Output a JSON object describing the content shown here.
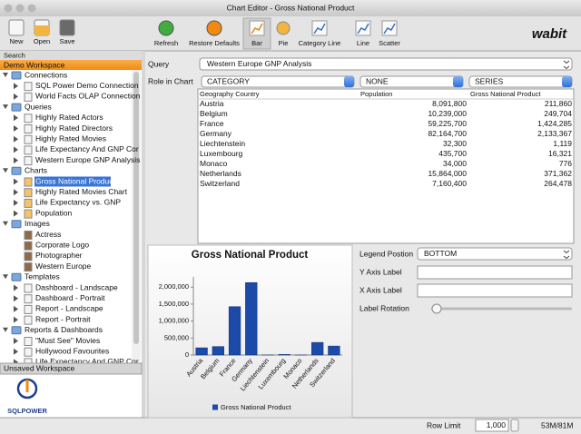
{
  "window": {
    "title": "Chart Editor - Gross National Product"
  },
  "toolbar": {
    "file_buttons": [
      "New",
      "Open",
      "Save"
    ],
    "chart_buttons": [
      "Refresh",
      "Restore Defaults",
      "Bar",
      "Pie",
      "Category Line",
      "Line",
      "Scatter"
    ],
    "logo": "wabit"
  },
  "sidebar": {
    "search": "Search",
    "workspace": "Demo Workspace",
    "tree": [
      {
        "label": "Connections",
        "items": [
          "SQL Power Demo Connection",
          "World Facts OLAP Connection"
        ]
      },
      {
        "label": "Queries",
        "items": [
          "Highly Rated Actors",
          "Highly Rated Directors",
          "Highly Rated Movies",
          "Life Expectancy And GNP Cor",
          "Western Europe GNP Analysis"
        ]
      },
      {
        "label": "Charts",
        "items": [
          "Gross National Product",
          "Highly Rated Movies Chart",
          "Life Expectancy vs. GNP",
          "Population"
        ]
      },
      {
        "label": "Images",
        "items": [
          "Actress",
          "Corporate Logo",
          "Photographer",
          "Western Europe"
        ]
      },
      {
        "label": "Templates",
        "items": [
          "Dashboard - Landscape",
          "Dashboard - Portrait",
          "Report - Landscape",
          "Report - Portrait"
        ]
      },
      {
        "label": "Reports & Dashboards",
        "items": [
          "\"Must See\" Movies",
          "Hollywood Favourites",
          "Life Expectancy And GNP Cor"
        ]
      }
    ],
    "unsaved": "Unsaved Workspace",
    "brand": "SQLPOWER"
  },
  "query": {
    "label": "Query",
    "value": "Western Europe GNP Analysis"
  },
  "roles": {
    "label": "Role in Chart",
    "values": [
      "CATEGORY",
      "NONE",
      "SERIES"
    ]
  },
  "table": {
    "columns": [
      "Geography Country",
      "Population",
      "Gross National Product"
    ],
    "rows": [
      [
        "Austria",
        "8,091,800",
        "211,860"
      ],
      [
        "Belgium",
        "10,239,000",
        "249,704"
      ],
      [
        "France",
        "59,225,700",
        "1,424,285"
      ],
      [
        "Germany",
        "82,164,700",
        "2,133,367"
      ],
      [
        "Liechtenstein",
        "32,300",
        "1,119"
      ],
      [
        "Luxembourg",
        "435,700",
        "16,321"
      ],
      [
        "Monaco",
        "34,000",
        "776"
      ],
      [
        "Netherlands",
        "15,864,000",
        "371,362"
      ],
      [
        "Switzerland",
        "7,160,400",
        "264,478"
      ]
    ]
  },
  "chart_data": {
    "type": "bar",
    "title": "Gross National Product",
    "categories": [
      "Austria",
      "Belgium",
      "France",
      "Germany",
      "Liechtenstein",
      "Luxembourg",
      "Monaco",
      "Netherlands",
      "Switzerland"
    ],
    "series": [
      {
        "name": "Gross National Product",
        "color": "#1c4aa8",
        "values": [
          211860,
          249704,
          1424285,
          2133367,
          1119,
          16321,
          776,
          371362,
          264478
        ]
      }
    ],
    "ylim": [
      0,
      2300000
    ],
    "yticks": [
      0,
      {
        "value": 500000,
        "label": "500,000"
      },
      {
        "value": 1000000,
        "label": "1,000,000"
      },
      {
        "value": 1500000,
        "label": "1,500,000"
      },
      {
        "value": 2000000,
        "label": "2,000,000"
      }
    ],
    "grid": false,
    "legend": "bottom"
  },
  "properties": {
    "legend_position_label": "Legend Postion",
    "legend_position": "BOTTOM",
    "y_axis_label": "Y Axis Label",
    "x_axis_label": "X Axis Label",
    "label_rotation": "Label Rotation"
  },
  "status": {
    "row_limit_label": "Row Limit",
    "row_limit": "1,000",
    "memory": "53M/81M"
  }
}
